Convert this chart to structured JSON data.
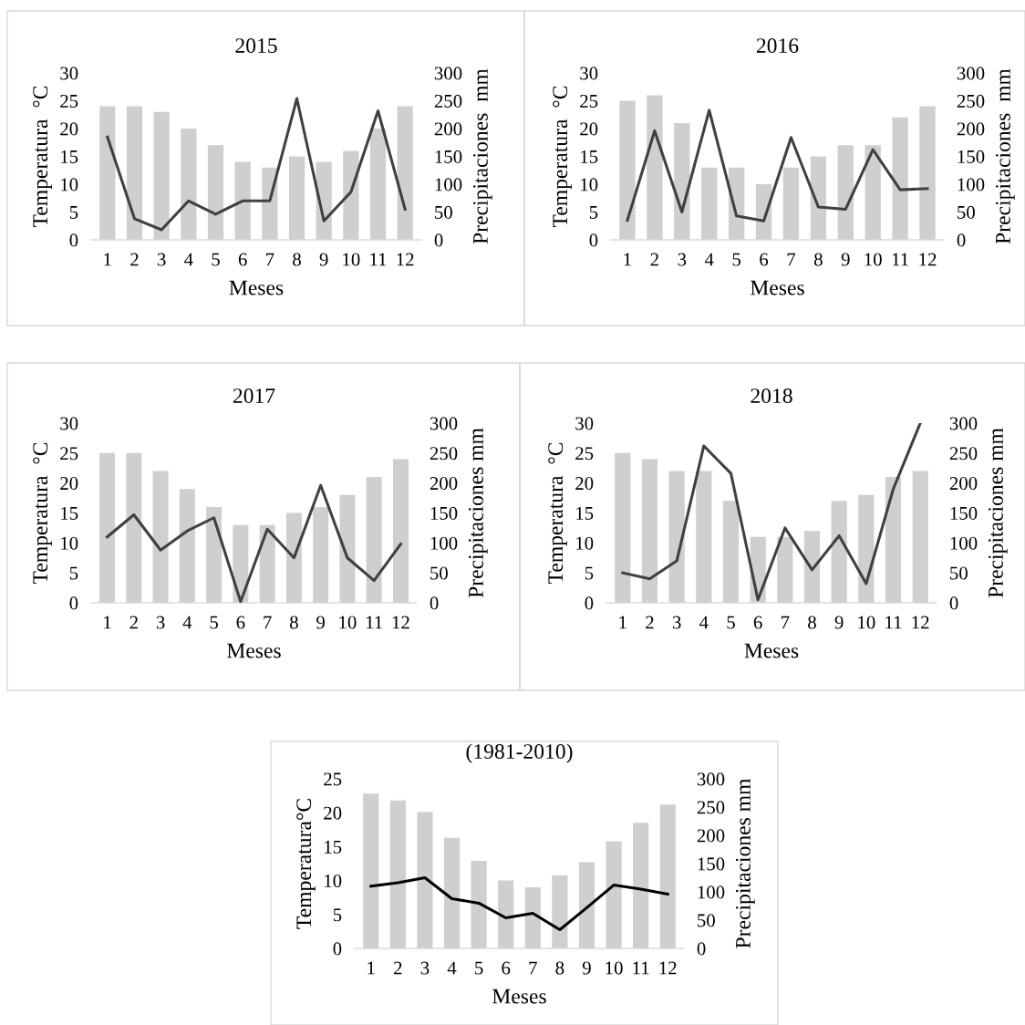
{
  "chart_data": [
    {
      "type": "bar",
      "title": "2015",
      "xlabel": "Meses",
      "ylabel": "Temperatura  °C",
      "y2label": "Precipitaciones  mm",
      "categories": [
        "1",
        "2",
        "3",
        "4",
        "5",
        "6",
        "7",
        "8",
        "9",
        "10",
        "11",
        "12"
      ],
      "ylim": [
        0,
        30
      ],
      "yticks": [
        0,
        5,
        10,
        15,
        20,
        25,
        30
      ],
      "y2lim": [
        0,
        300
      ],
      "y2ticks": [
        0,
        50,
        100,
        150,
        200,
        250,
        300
      ],
      "series": [
        {
          "color": "#d0cece",
          "values": [
            24,
            24,
            23,
            20,
            17,
            14,
            13,
            15,
            14,
            16,
            20,
            24
          ]
        },
        {
          "type": "line",
          "axis": "y2",
          "color": "#404040",
          "values": [
            185,
            38,
            18,
            70,
            46,
            70,
            70,
            254,
            34,
            86,
            232,
            55
          ]
        }
      ]
    },
    {
      "type": "bar",
      "title": "2016",
      "xlabel": "Meses",
      "ylabel": "Temperatura  °C",
      "y2label": "Precipitaciones  mm",
      "categories": [
        "1",
        "2",
        "3",
        "4",
        "5",
        "6",
        "7",
        "8",
        "9",
        "10",
        "11",
        "12"
      ],
      "ylim": [
        0,
        30
      ],
      "yticks": [
        0,
        5,
        10,
        15,
        20,
        25,
        30
      ],
      "y2lim": [
        0,
        300
      ],
      "y2ticks": [
        0,
        50,
        100,
        150,
        200,
        250,
        300
      ],
      "series": [
        {
          "color": "#d0cece",
          "values": [
            25,
            26,
            21,
            13,
            13,
            10,
            13,
            15,
            17,
            17,
            22,
            24
          ]
        },
        {
          "type": "line",
          "axis": "y2",
          "color": "#404040",
          "values": [
            35,
            196,
            50,
            233,
            43,
            34,
            184,
            59,
            55,
            162,
            90,
            92
          ]
        }
      ]
    },
    {
      "type": "bar",
      "title": "2017",
      "xlabel": "Meses",
      "ylabel": "Temperatura  °C",
      "y2label": "Precipitaciones mm",
      "categories": [
        "1",
        "2",
        "3",
        "4",
        "5",
        "6",
        "7",
        "8",
        "9",
        "10",
        "11",
        "12"
      ],
      "ylim": [
        0,
        30
      ],
      "yticks": [
        0,
        5,
        10,
        15,
        20,
        25,
        30
      ],
      "y2lim": [
        0,
        300
      ],
      "y2ticks": [
        0,
        50,
        100,
        150,
        200,
        250,
        300
      ],
      "series": [
        {
          "color": "#d0cece",
          "values": [
            25,
            25,
            22,
            19,
            16,
            13,
            13,
            15,
            16,
            18,
            21,
            24
          ]
        },
        {
          "type": "line",
          "axis": "y2",
          "color": "#404040",
          "values": [
            110,
            147,
            88,
            120,
            142,
            2,
            123,
            75,
            196,
            75,
            37,
            98
          ]
        }
      ]
    },
    {
      "type": "bar",
      "title": "2018",
      "xlabel": "Meses",
      "ylabel": "Temperatura  °C",
      "y2label": "Precipitaciones mm",
      "categories": [
        "1",
        "2",
        "3",
        "4",
        "5",
        "6",
        "7",
        "8",
        "9",
        "10",
        "11",
        "12"
      ],
      "ylim": [
        0,
        30
      ],
      "yticks": [
        0,
        5,
        10,
        15,
        20,
        25,
        30
      ],
      "y2lim": [
        0,
        300
      ],
      "y2ticks": [
        0,
        50,
        100,
        150,
        200,
        250,
        300
      ],
      "series": [
        {
          "color": "#d0cece",
          "values": [
            25,
            24,
            22,
            22,
            17,
            11,
            11,
            12,
            17,
            18,
            21,
            22
          ]
        },
        {
          "type": "line",
          "axis": "y2",
          "color": "#404040",
          "values": [
            50,
            40,
            70,
            262,
            216,
            5,
            125,
            55,
            112,
            32,
            190,
            300
          ]
        }
      ]
    },
    {
      "type": "bar",
      "title": "(1981-2010)",
      "xlabel": "Meses",
      "ylabel": "Temperatura°C",
      "y2label": "Precipitaciones mm",
      "categories": [
        "1",
        "2",
        "3",
        "4",
        "5",
        "6",
        "7",
        "8",
        "9",
        "10",
        "11",
        "12"
      ],
      "ylim": [
        0,
        25
      ],
      "yticks": [
        0,
        5,
        10,
        15,
        20,
        25
      ],
      "y2lim": [
        0,
        300
      ],
      "y2ticks": [
        0,
        50,
        100,
        150,
        200,
        250,
        300
      ],
      "series": [
        {
          "color": "#d0cece",
          "values": [
            22.8,
            21.8,
            20.1,
            16.3,
            12.9,
            10.0,
            9.0,
            10.8,
            12.7,
            15.8,
            18.5,
            21.2
          ]
        },
        {
          "type": "line",
          "axis": "y2",
          "color": "#000000",
          "values": [
            110,
            116,
            125,
            88,
            80,
            54,
            62,
            33,
            72,
            112,
            105,
            96
          ]
        }
      ]
    }
  ]
}
